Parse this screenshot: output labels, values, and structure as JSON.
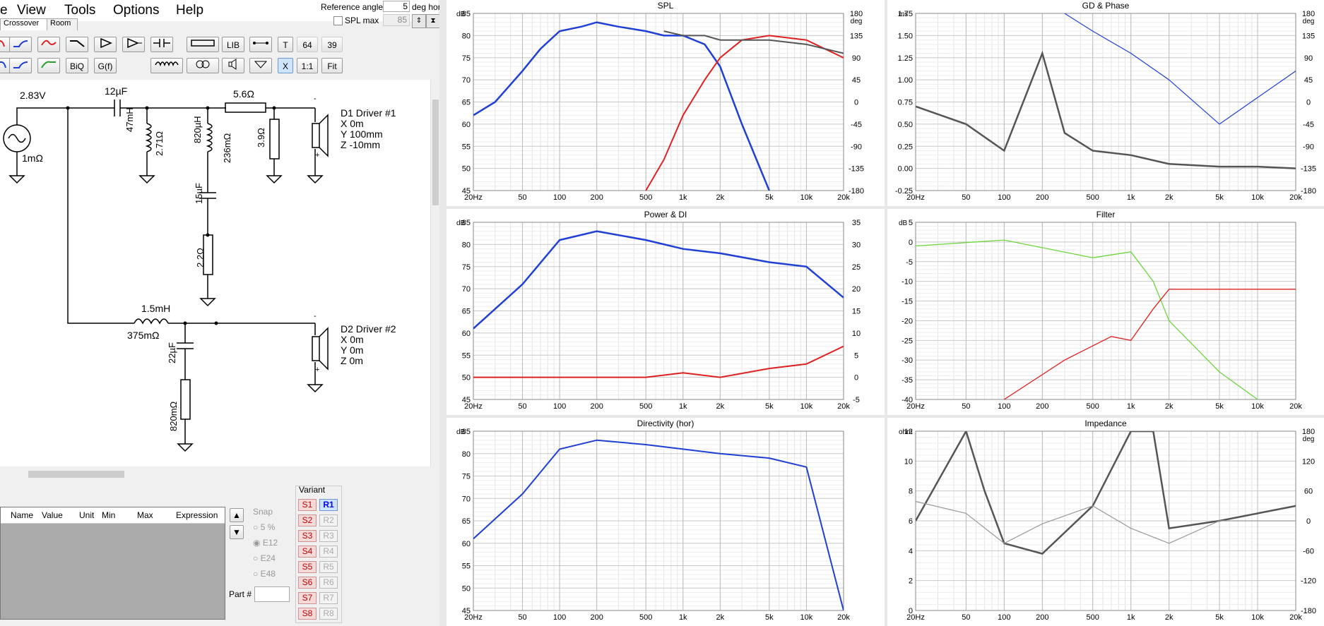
{
  "menu": [
    "e",
    "View",
    "Tools",
    "Options",
    "Help"
  ],
  "reference": {
    "label": "Reference angle",
    "value": "5",
    "unit": "deg hor",
    "spl_label": "SPL max",
    "spl_value": "85"
  },
  "tabs": [
    "Crossover",
    "Room"
  ],
  "toolbar": {
    "lib": "LIB",
    "t": "T",
    "n64": "64",
    "n39": "39",
    "biq": "BiQ",
    "gf": "G(f)",
    "x": "X",
    "ratio": "1:1",
    "fit": "Fit"
  },
  "schematic": {
    "source_voltage": "2.83V",
    "source_r": "1mΩ",
    "c1": "12µF",
    "r1": "5.6Ω",
    "l1": "47mH",
    "l1r": "2.71Ω",
    "l2": "820µH",
    "l2r": "236mΩ",
    "r2": "3.9Ω",
    "c2": "15µF",
    "r3": "2.2Ω",
    "l3": "1.5mH",
    "l3r": "375mΩ",
    "c3": "22µF",
    "r4": "820mΩ",
    "d1": {
      "name": "D1 Driver #1",
      "x": "X 0m",
      "y": "Y 100mm",
      "z": "Z -10mm"
    },
    "d2": {
      "name": "D2 Driver #2",
      "x": "X 0m",
      "y": "Y 0m",
      "z": "Z 0m"
    }
  },
  "params_table": {
    "headers": [
      "Name",
      "Value",
      "Unit",
      "Min",
      "Max",
      "Expression"
    ]
  },
  "snap": {
    "label": "Snap",
    "options": [
      "5 %",
      "E12",
      "E24",
      "E48"
    ],
    "part_label": "Part #"
  },
  "variant": {
    "label": "Variant",
    "s": [
      "S1",
      "S2",
      "S3",
      "S4",
      "S5",
      "S6",
      "S7",
      "S8"
    ],
    "r": [
      "R1",
      "R2",
      "R3",
      "R4",
      "R5",
      "R6",
      "R7",
      "R8"
    ]
  },
  "colors": {
    "blue": "#1f3fd6",
    "red": "#e02020",
    "gray": "#555555",
    "green": "#6ad63a",
    "magenta": "#e020e0"
  },
  "panels": {
    "spl": {
      "title": "SPL",
      "yunit": "dB",
      "y2unit": "deg",
      "y": [
        "85",
        "80",
        "75",
        "70",
        "65",
        "60",
        "55",
        "50",
        "45"
      ],
      "y2": [
        "180",
        "135",
        "90",
        "45",
        "0",
        "-45",
        "-90",
        "-135",
        "-180"
      ]
    },
    "gd": {
      "title": "GD & Phase",
      "yunit": "ms",
      "y2unit": "deg",
      "y": [
        "1.75",
        "1.50",
        "1.25",
        "1.00",
        "0.75",
        "0.50",
        "0.25",
        "0.00",
        "-0.25"
      ],
      "y2": [
        "180",
        "135",
        "90",
        "45",
        "0",
        "-45",
        "-90",
        "-135",
        "-180"
      ]
    },
    "power": {
      "title": "Power & DI",
      "yunit": "dB",
      "y": [
        "85",
        "80",
        "75",
        "70",
        "65",
        "60",
        "55",
        "50",
        "45"
      ],
      "y2": [
        "35",
        "30",
        "25",
        "20",
        "15",
        "10",
        "5",
        "0",
        "-5"
      ]
    },
    "filter": {
      "title": "Filter",
      "yunit": "dB",
      "y": [
        "5",
        "0",
        "-5",
        "-10",
        "-15",
        "-20",
        "-25",
        "-30",
        "-35",
        "-40"
      ]
    },
    "directivity": {
      "title": "Directivity (hor)",
      "yunit": "dB",
      "y": [
        "85",
        "80",
        "75",
        "70",
        "65",
        "60",
        "55",
        "50",
        "45"
      ]
    },
    "impedance": {
      "title": "Impedance",
      "yunit": "ohm",
      "y2unit": "deg",
      "y": [
        "12",
        "10",
        "8",
        "6",
        "4",
        "2",
        "0"
      ],
      "y2": [
        "180",
        "120",
        "60",
        "0",
        "-60",
        "-120",
        "-180"
      ]
    },
    "freq": [
      "20Hz",
      "50",
      "100",
      "200",
      "500",
      "1k",
      "2k",
      "5k",
      "10k",
      "20k"
    ]
  },
  "chart_data": [
    {
      "type": "line",
      "title": "SPL",
      "ylabel": "dB",
      "ylim": [
        45,
        85
      ],
      "xlim": [
        20,
        20000
      ],
      "series": [
        {
          "x": [
            20,
            30,
            50,
            70,
            100,
            150,
            200,
            300,
            500,
            700,
            1000,
            1500,
            2000,
            3000,
            5000
          ],
          "y": [
            62,
            65,
            72,
            77,
            81,
            82,
            83,
            82,
            81,
            80,
            80,
            78,
            73,
            60,
            45
          ]
        },
        {
          "x": [
            500,
            700,
            1000,
            1500,
            2000,
            3000,
            5000,
            10000,
            20000
          ],
          "y": [
            45,
            52,
            62,
            70,
            75,
            79,
            80,
            79,
            75
          ]
        },
        {
          "x": [
            700,
            1000,
            1500,
            2000,
            3000,
            5000,
            10000,
            20000
          ],
          "y": [
            81,
            80,
            80,
            79,
            79,
            79,
            78,
            76
          ]
        }
      ]
    },
    {
      "type": "line",
      "title": "GD & Phase",
      "ylabel": "ms",
      "ylim": [
        -0.25,
        1.75
      ],
      "xlim": [
        20,
        20000
      ],
      "series": [
        {
          "x": [
            20,
            50,
            100,
            200,
            300,
            500,
            1000,
            2000,
            5000,
            10000,
            20000
          ],
          "y": [
            0.7,
            0.5,
            0.2,
            1.3,
            0.4,
            0.2,
            0.15,
            0.05,
            0.02,
            0.02,
            0.0
          ]
        },
        {
          "x": [
            300,
            500,
            1000,
            2000,
            5000,
            10000,
            20000
          ],
          "y": [
            1.75,
            1.55,
            1.3,
            1.0,
            0.5,
            0.8,
            1.1
          ]
        }
      ]
    },
    {
      "type": "line",
      "title": "Power & DI",
      "ylabel": "dB",
      "ylim": [
        45,
        85
      ],
      "xlim": [
        20,
        20000
      ],
      "series": [
        {
          "x": [
            20,
            50,
            100,
            200,
            500,
            1000,
            2000,
            5000,
            10000,
            20000
          ],
          "y": [
            61,
            71,
            81,
            83,
            81,
            79,
            78,
            76,
            75,
            68
          ]
        },
        {
          "x": [
            20,
            100,
            500,
            1000,
            2000,
            5000,
            10000,
            20000
          ],
          "y": [
            50,
            50,
            50,
            51,
            50,
            52,
            53,
            57
          ]
        }
      ]
    },
    {
      "type": "line",
      "title": "Filter",
      "ylabel": "dB",
      "ylim": [
        -40,
        5
      ],
      "xlim": [
        20,
        20000
      ],
      "series": [
        {
          "x": [
            20,
            100,
            500,
            1000,
            1500,
            2000,
            5000,
            10000
          ],
          "y": [
            -1,
            0.5,
            -4,
            -2.5,
            -10,
            -20,
            -33,
            -40
          ]
        },
        {
          "x": [
            100,
            300,
            700,
            1000,
            1500,
            2000,
            5000,
            20000
          ],
          "y": [
            -40,
            -30,
            -24,
            -25,
            -17,
            -12,
            -12,
            -12
          ]
        }
      ]
    },
    {
      "type": "line",
      "title": "Directivity (hor)",
      "ylabel": "dB",
      "ylim": [
        45,
        85
      ],
      "xlim": [
        20,
        20000
      ],
      "series": [
        {
          "x": [
            20,
            50,
            100,
            200,
            500,
            1000,
            2000,
            5000,
            10000,
            20000
          ],
          "y": [
            61,
            71,
            81,
            83,
            82,
            81,
            80,
            79,
            77,
            45
          ]
        }
      ]
    },
    {
      "type": "line",
      "title": "Impedance",
      "ylabel": "ohm",
      "ylim": [
        0,
        12
      ],
      "xlim": [
        20,
        20000
      ],
      "series": [
        {
          "x": [
            20,
            50,
            70,
            100,
            200,
            500,
            1000,
            1500,
            2000,
            5000,
            10000,
            20000
          ],
          "y": [
            6,
            12,
            8,
            4.5,
            3.8,
            7,
            12,
            12,
            5.5,
            6,
            6.5,
            7
          ]
        },
        {
          "x": [
            20,
            50,
            100,
            200,
            500,
            1000,
            2000,
            5000,
            20000
          ],
          "y": [
            7.3,
            6.5,
            4.5,
            5.8,
            7,
            5.5,
            4.5,
            6,
            6
          ]
        }
      ]
    }
  ]
}
